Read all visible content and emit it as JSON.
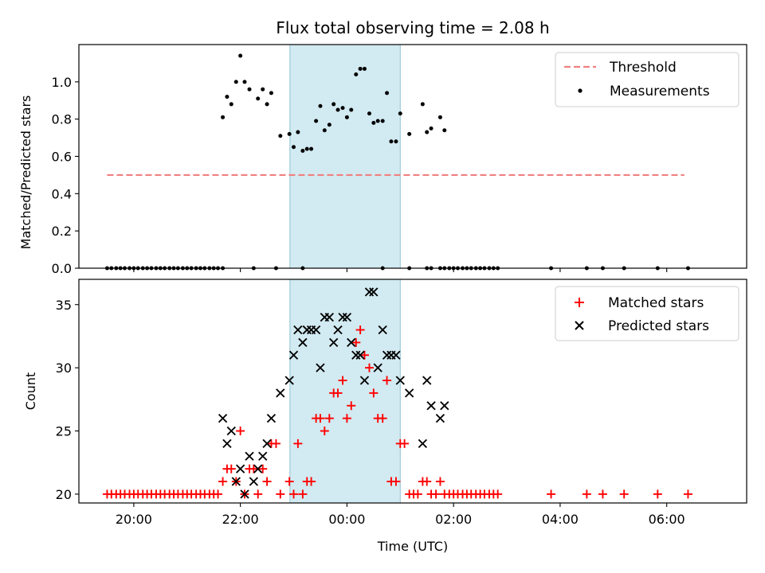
{
  "chart_data": {
    "type": "scatter",
    "title": "Flux total observing time = 2.08 h",
    "xlabel": "Time (UTC)",
    "x_ticks": [
      "20:00",
      "22:00",
      "00:00",
      "02:00",
      "04:00",
      "06:00"
    ],
    "x_tick_hours": [
      20,
      22,
      24,
      26,
      28,
      30
    ],
    "xlim_hours": [
      18.97,
      31.5
    ],
    "shaded_interval_hours": [
      22.93,
      25.0
    ],
    "shade_color": "#add8e6",
    "panels": [
      {
        "ylabel": "Matched/Predicted stars",
        "ylim": [
          0,
          1.2
        ],
        "yticks": [
          0.0,
          0.2,
          0.4,
          0.6,
          0.8,
          1.0
        ],
        "ytick_labels": [
          "0.0",
          "0.2",
          "0.4",
          "0.6",
          "0.8",
          "1.0"
        ],
        "legend": [
          "Threshold",
          "Measurements"
        ],
        "legend_position": "top-right",
        "threshold": {
          "name": "Threshold",
          "y": 0.5,
          "x_range": [
            19.5,
            30.33
          ],
          "color": "#f08080"
        },
        "measurements": {
          "name": "Measurements",
          "color": "#000000",
          "points": [
            [
              19.5,
              0
            ],
            [
              19.58,
              0
            ],
            [
              19.67,
              0
            ],
            [
              19.75,
              0
            ],
            [
              19.83,
              0
            ],
            [
              19.92,
              0
            ],
            [
              20.0,
              0
            ],
            [
              20.08,
              0
            ],
            [
              20.17,
              0
            ],
            [
              20.25,
              0
            ],
            [
              20.33,
              0
            ],
            [
              20.42,
              0
            ],
            [
              20.5,
              0
            ],
            [
              20.58,
              0
            ],
            [
              20.67,
              0
            ],
            [
              20.75,
              0
            ],
            [
              20.83,
              0
            ],
            [
              20.92,
              0
            ],
            [
              21.0,
              0
            ],
            [
              21.08,
              0
            ],
            [
              21.17,
              0
            ],
            [
              21.25,
              0
            ],
            [
              21.33,
              0
            ],
            [
              21.42,
              0
            ],
            [
              21.5,
              0
            ],
            [
              21.58,
              0
            ],
            [
              21.67,
              0
            ],
            [
              22.25,
              0
            ],
            [
              22.67,
              0
            ],
            [
              23.17,
              0
            ],
            [
              24.67,
              0
            ],
            [
              25.17,
              0
            ],
            [
              25.5,
              0
            ],
            [
              25.58,
              0
            ],
            [
              25.75,
              0
            ],
            [
              25.83,
              0
            ],
            [
              25.92,
              0
            ],
            [
              26.0,
              0
            ],
            [
              26.08,
              0
            ],
            [
              26.17,
              0
            ],
            [
              26.25,
              0
            ],
            [
              26.33,
              0
            ],
            [
              26.42,
              0
            ],
            [
              26.5,
              0
            ],
            [
              26.58,
              0
            ],
            [
              26.67,
              0
            ],
            [
              26.75,
              0
            ],
            [
              26.83,
              0
            ],
            [
              27.83,
              0
            ],
            [
              28.5,
              0
            ],
            [
              28.8,
              0
            ],
            [
              29.2,
              0
            ],
            [
              29.83,
              0
            ],
            [
              30.4,
              0
            ],
            [
              21.67,
              0.81
            ],
            [
              21.75,
              0.92
            ],
            [
              21.83,
              0.88
            ],
            [
              21.92,
              1.0
            ],
            [
              22.0,
              1.14
            ],
            [
              22.08,
              1.0
            ],
            [
              22.17,
              0.96
            ],
            [
              22.33,
              0.91
            ],
            [
              22.42,
              0.96
            ],
            [
              22.5,
              0.88
            ],
            [
              22.58,
              0.94
            ],
            [
              22.75,
              0.71
            ],
            [
              22.92,
              0.72
            ],
            [
              23.0,
              0.65
            ],
            [
              23.08,
              0.73
            ],
            [
              23.17,
              0.63
            ],
            [
              23.25,
              0.64
            ],
            [
              23.33,
              0.64
            ],
            [
              23.42,
              0.79
            ],
            [
              23.5,
              0.87
            ],
            [
              23.58,
              0.74
            ],
            [
              23.67,
              0.77
            ],
            [
              23.75,
              0.88
            ],
            [
              23.83,
              0.85
            ],
            [
              23.92,
              0.86
            ],
            [
              24.0,
              0.81
            ],
            [
              24.08,
              0.85
            ],
            [
              24.17,
              1.04
            ],
            [
              24.25,
              1.07
            ],
            [
              24.33,
              1.07
            ],
            [
              24.42,
              0.83
            ],
            [
              24.5,
              0.78
            ],
            [
              24.58,
              0.79
            ],
            [
              24.67,
              0.79
            ],
            [
              24.75,
              0.94
            ],
            [
              24.83,
              0.68
            ],
            [
              24.92,
              0.68
            ],
            [
              25.0,
              0.83
            ],
            [
              25.17,
              0.72
            ],
            [
              25.42,
              0.88
            ],
            [
              25.5,
              0.73
            ],
            [
              25.58,
              0.75
            ],
            [
              25.75,
              0.81
            ],
            [
              25.83,
              0.74
            ]
          ]
        }
      },
      {
        "ylabel": "Count",
        "ylim": [
          19.3,
          37.0
        ],
        "yticks": [
          20,
          25,
          30,
          35
        ],
        "ytick_labels": [
          "20",
          "25",
          "30",
          "35"
        ],
        "legend": [
          "Matched stars",
          "Predicted stars"
        ],
        "legend_position": "top-right",
        "matched": {
          "name": "Matched stars",
          "color": "#ff0000",
          "points": [
            [
              19.5,
              20
            ],
            [
              19.58,
              20
            ],
            [
              19.67,
              20
            ],
            [
              19.75,
              20
            ],
            [
              19.83,
              20
            ],
            [
              19.92,
              20
            ],
            [
              20.0,
              20
            ],
            [
              20.08,
              20
            ],
            [
              20.17,
              20
            ],
            [
              20.25,
              20
            ],
            [
              20.33,
              20
            ],
            [
              20.42,
              20
            ],
            [
              20.5,
              20
            ],
            [
              20.58,
              20
            ],
            [
              20.67,
              20
            ],
            [
              20.75,
              20
            ],
            [
              20.83,
              20
            ],
            [
              20.92,
              20
            ],
            [
              21.0,
              20
            ],
            [
              21.08,
              20
            ],
            [
              21.17,
              20
            ],
            [
              21.25,
              20
            ],
            [
              21.33,
              20
            ],
            [
              21.42,
              20
            ],
            [
              21.5,
              20
            ],
            [
              21.58,
              20
            ],
            [
              21.67,
              21
            ],
            [
              21.75,
              22
            ],
            [
              21.83,
              22
            ],
            [
              21.92,
              21
            ],
            [
              22.0,
              25
            ],
            [
              22.08,
              20
            ],
            [
              22.17,
              22
            ],
            [
              22.25,
              22
            ],
            [
              22.33,
              20
            ],
            [
              22.42,
              22
            ],
            [
              22.5,
              21
            ],
            [
              22.58,
              24
            ],
            [
              22.67,
              24
            ],
            [
              22.75,
              20
            ],
            [
              22.92,
              21
            ],
            [
              23.0,
              20
            ],
            [
              23.08,
              24
            ],
            [
              23.17,
              20
            ],
            [
              23.25,
              21
            ],
            [
              23.33,
              21
            ],
            [
              23.42,
              26
            ],
            [
              23.5,
              26
            ],
            [
              23.58,
              25
            ],
            [
              23.67,
              26
            ],
            [
              23.75,
              28
            ],
            [
              23.83,
              28
            ],
            [
              23.92,
              29
            ],
            [
              24.0,
              26
            ],
            [
              24.08,
              27
            ],
            [
              24.17,
              32
            ],
            [
              24.25,
              33
            ],
            [
              24.33,
              31
            ],
            [
              24.42,
              30
            ],
            [
              24.5,
              28
            ],
            [
              24.58,
              26
            ],
            [
              24.67,
              26
            ],
            [
              24.75,
              29
            ],
            [
              24.83,
              21
            ],
            [
              24.92,
              21
            ],
            [
              25.0,
              24
            ],
            [
              25.08,
              24
            ],
            [
              25.17,
              20
            ],
            [
              25.25,
              20
            ],
            [
              25.33,
              20
            ],
            [
              25.42,
              21
            ],
            [
              25.5,
              21
            ],
            [
              25.58,
              20
            ],
            [
              25.67,
              20
            ],
            [
              25.75,
              21
            ],
            [
              25.83,
              20
            ],
            [
              25.92,
              20
            ],
            [
              26.0,
              20
            ],
            [
              26.08,
              20
            ],
            [
              26.17,
              20
            ],
            [
              26.25,
              20
            ],
            [
              26.33,
              20
            ],
            [
              26.42,
              20
            ],
            [
              26.5,
              20
            ],
            [
              26.58,
              20
            ],
            [
              26.67,
              20
            ],
            [
              26.75,
              20
            ],
            [
              26.83,
              20
            ],
            [
              27.83,
              20
            ],
            [
              28.5,
              20
            ],
            [
              28.8,
              20
            ],
            [
              29.2,
              20
            ],
            [
              29.83,
              20
            ],
            [
              30.4,
              20
            ]
          ]
        },
        "predicted": {
          "name": "Predicted stars",
          "color": "#000000",
          "points": [
            [
              21.67,
              26
            ],
            [
              21.75,
              24
            ],
            [
              21.83,
              25
            ],
            [
              21.92,
              21
            ],
            [
              22.0,
              22
            ],
            [
              22.08,
              20
            ],
            [
              22.17,
              23
            ],
            [
              22.25,
              21
            ],
            [
              22.33,
              22
            ],
            [
              22.42,
              23
            ],
            [
              22.5,
              24
            ],
            [
              22.58,
              26
            ],
            [
              22.75,
              28
            ],
            [
              22.92,
              29
            ],
            [
              23.0,
              31
            ],
            [
              23.08,
              33
            ],
            [
              23.17,
              32
            ],
            [
              23.25,
              33
            ],
            [
              23.33,
              33
            ],
            [
              23.42,
              33
            ],
            [
              23.5,
              30
            ],
            [
              23.58,
              34
            ],
            [
              23.67,
              34
            ],
            [
              23.75,
              32
            ],
            [
              23.83,
              33
            ],
            [
              23.92,
              34
            ],
            [
              24.0,
              34
            ],
            [
              24.08,
              32
            ],
            [
              24.17,
              31
            ],
            [
              24.25,
              31
            ],
            [
              24.33,
              29
            ],
            [
              24.42,
              36
            ],
            [
              24.5,
              36
            ],
            [
              24.58,
              30
            ],
            [
              24.67,
              33
            ],
            [
              24.75,
              31
            ],
            [
              24.83,
              31
            ],
            [
              24.92,
              31
            ],
            [
              25.0,
              29
            ],
            [
              25.17,
              28
            ],
            [
              25.42,
              24
            ],
            [
              25.5,
              29
            ],
            [
              25.58,
              27
            ],
            [
              25.75,
              26
            ],
            [
              25.83,
              27
            ]
          ]
        }
      }
    ]
  }
}
